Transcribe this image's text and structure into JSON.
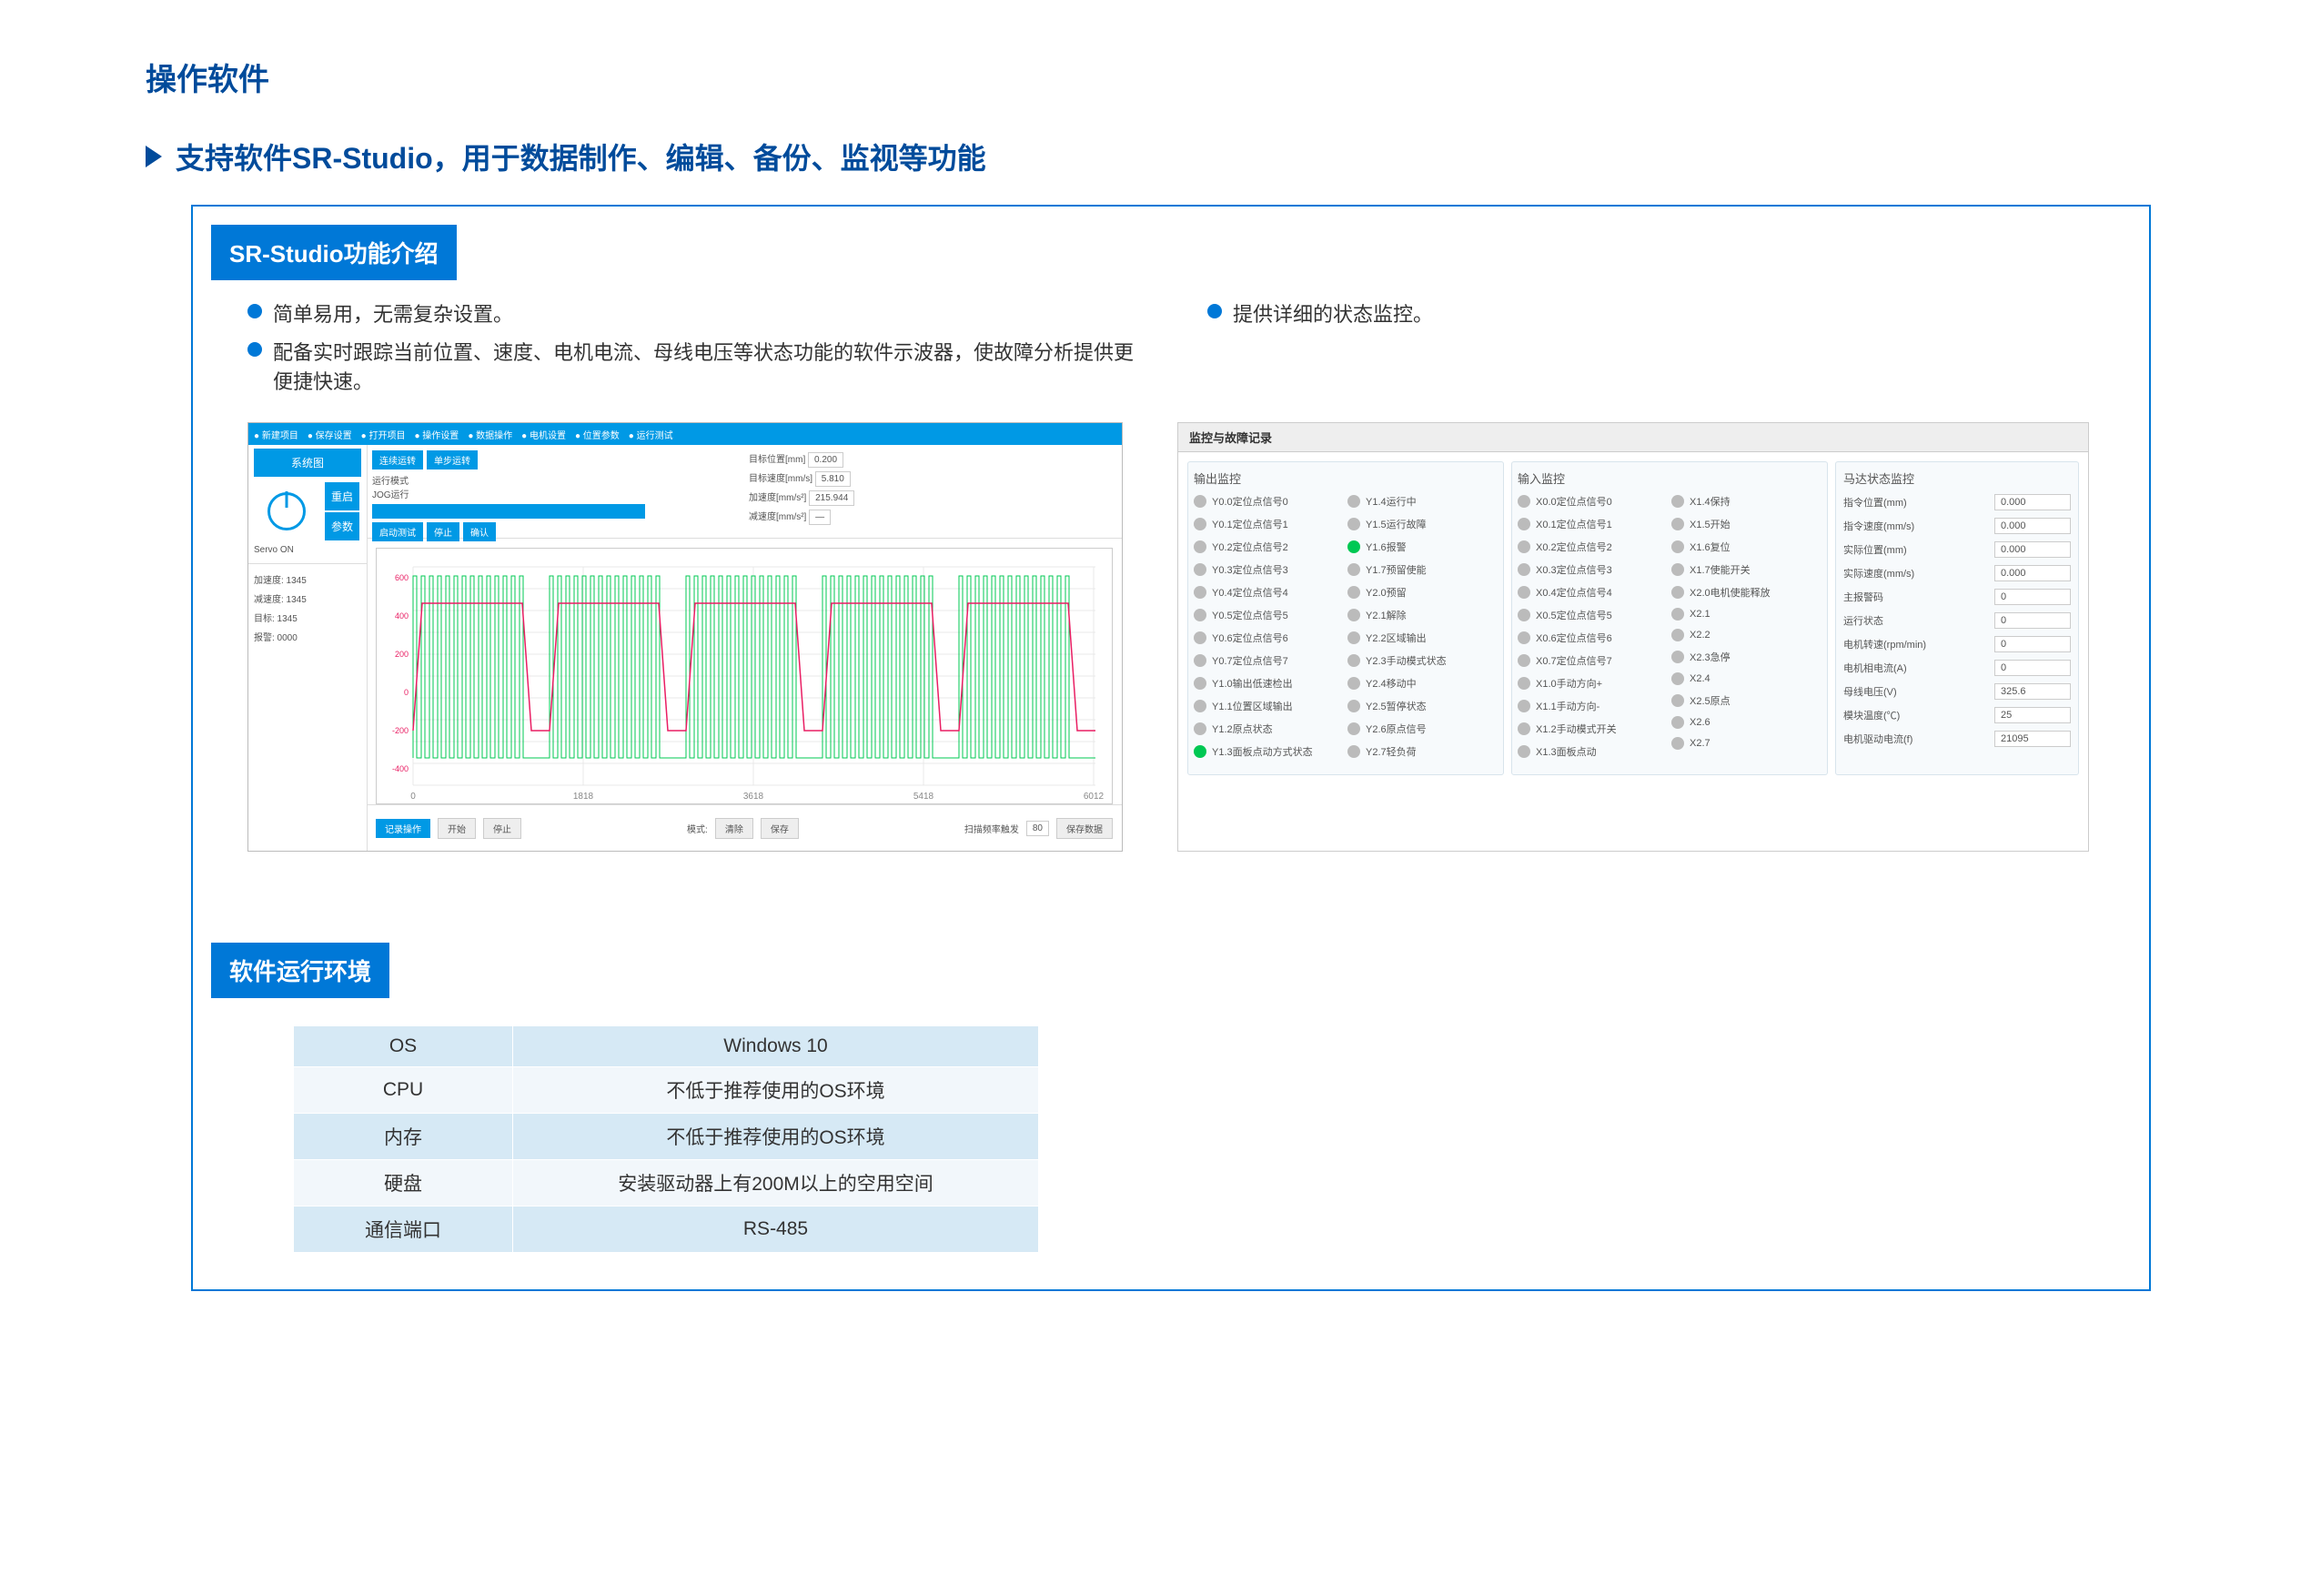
{
  "title": "操作软件",
  "subtitle": "支持软件SR-Studio，用于数据制作、编辑、备份、监视等功能",
  "section1": {
    "header": "SR-Studio功能介绍",
    "bullets_left": [
      "简单易用，无需复杂设置。",
      "配备实时跟踪当前位置、速度、电机电流、母线电压等状态功能的软件示波器，使故障分析提供更便捷快速。"
    ],
    "bullets_right": [
      "提供详细的状态监控。"
    ]
  },
  "scope": {
    "topbar": [
      "新建项目",
      "保存设置",
      "打开项目",
      "操作设置",
      "数据操作",
      "电机设置",
      "位置参数",
      "运行测试"
    ],
    "sidebar_btns": [
      "系统图",
      "重启",
      "参数"
    ],
    "servo_label": "Servo ON",
    "fields": [
      [
        "目标位置[mm]",
        "0.200"
      ],
      [
        "目标速度[mm/s]",
        "5.810"
      ],
      [
        "加速度[mm/s²]",
        "215.944"
      ],
      [
        "减速度[mm/s²]",
        "—"
      ]
    ],
    "bottom_btns": [
      "启动操作",
      "停止",
      "",
      "",
      "",
      "",
      "",
      "",
      "清除",
      "保存",
      "",
      "",
      "",
      "保存数据"
    ],
    "x_labels": [
      "0",
      "1818",
      "3618",
      "5418",
      "6012"
    ],
    "chart": {
      "bg": "#ffffff",
      "green": "#00c853",
      "magenta": "#e91e63",
      "grid": "#e8e8e8"
    },
    "stat_lines": [
      "加速度: 1345",
      "减速度: 1345",
      "目标: 1345",
      "报警: 0000"
    ]
  },
  "monitor": {
    "title": "监控与故障记录",
    "sec_out": "输出监控",
    "sec_in": "输入监控",
    "sec_stat": "马达状态监控",
    "out1": [
      [
        "Y0.0定位点信号0",
        0
      ],
      [
        "Y0.1定位点信号1",
        0
      ],
      [
        "Y0.2定位点信号2",
        0
      ],
      [
        "Y0.3定位点信号3",
        0
      ],
      [
        "Y0.4定位点信号4",
        0
      ],
      [
        "Y0.5定位点信号5",
        0
      ],
      [
        "Y0.6定位点信号6",
        0
      ],
      [
        "Y0.7定位点信号7",
        0
      ],
      [
        "Y1.0输出低速检出",
        0
      ],
      [
        "Y1.1位置区域输出",
        0
      ],
      [
        "Y1.2原点状态",
        0
      ],
      [
        "Y1.3面板点动方式状态",
        1
      ]
    ],
    "out2": [
      [
        "Y1.4运行中",
        0
      ],
      [
        "Y1.5运行故障",
        0
      ],
      [
        "Y1.6报警",
        1
      ],
      [
        "Y1.7预留使能",
        0
      ],
      [
        "Y2.0预留",
        0
      ],
      [
        "Y2.1解除",
        0
      ],
      [
        "Y2.2区域输出",
        0
      ],
      [
        "Y2.3手动模式状态",
        0
      ],
      [
        "Y2.4移动中",
        0
      ],
      [
        "Y2.5暂停状态",
        0
      ],
      [
        "Y2.6原点信号",
        0
      ],
      [
        "Y2.7轻负荷",
        0
      ]
    ],
    "in1": [
      [
        "X0.0定位点信号0",
        0
      ],
      [
        "X0.1定位点信号1",
        0
      ],
      [
        "X0.2定位点信号2",
        0
      ],
      [
        "X0.3定位点信号3",
        0
      ],
      [
        "X0.4定位点信号4",
        0
      ],
      [
        "X0.5定位点信号5",
        0
      ],
      [
        "X0.6定位点信号6",
        0
      ],
      [
        "X0.7定位点信号7",
        0
      ],
      [
        "X1.0手动方向+",
        0
      ],
      [
        "X1.1手动方向-",
        0
      ],
      [
        "X1.2手动模式开关",
        0
      ],
      [
        "X1.3面板点动",
        0
      ]
    ],
    "in2": [
      [
        "X1.4保持",
        0
      ],
      [
        "X1.5开始",
        0
      ],
      [
        "X1.6复位",
        0
      ],
      [
        "X1.7使能开关",
        0
      ],
      [
        "X2.0电机使能释放",
        0
      ],
      [
        "X2.1",
        0
      ],
      [
        "X2.2",
        0
      ],
      [
        "X2.3急停",
        0
      ],
      [
        "X2.4",
        0
      ],
      [
        "X2.5原点",
        0
      ],
      [
        "X2.6",
        0
      ],
      [
        "X2.7",
        0
      ]
    ],
    "status": [
      [
        "指令位置(mm)",
        "0.000"
      ],
      [
        "指令速度(mm/s)",
        "0.000"
      ],
      [
        "实际位置(mm)",
        "0.000"
      ],
      [
        "实际速度(mm/s)",
        "0.000"
      ],
      [
        "主报警码",
        "0"
      ],
      [
        "运行状态",
        "0"
      ],
      [
        "电机转速(rpm/min)",
        "0"
      ],
      [
        "电机相电流(A)",
        "0"
      ],
      [
        "母线电压(V)",
        "325.6"
      ],
      [
        "模块温度(℃)",
        "25"
      ],
      [
        "电机驱动电流(f)",
        "21095"
      ]
    ]
  },
  "env": {
    "header": "软件运行环境",
    "rows": [
      [
        "OS",
        "Windows 10"
      ],
      [
        "CPU",
        "不低于推荐使用的OS环境"
      ],
      [
        "内存",
        "不低于推荐使用的OS环境"
      ],
      [
        "硬盘",
        "安装驱动器上有200M以上的空用空间"
      ],
      [
        "通信端口",
        "RS-485"
      ]
    ]
  }
}
